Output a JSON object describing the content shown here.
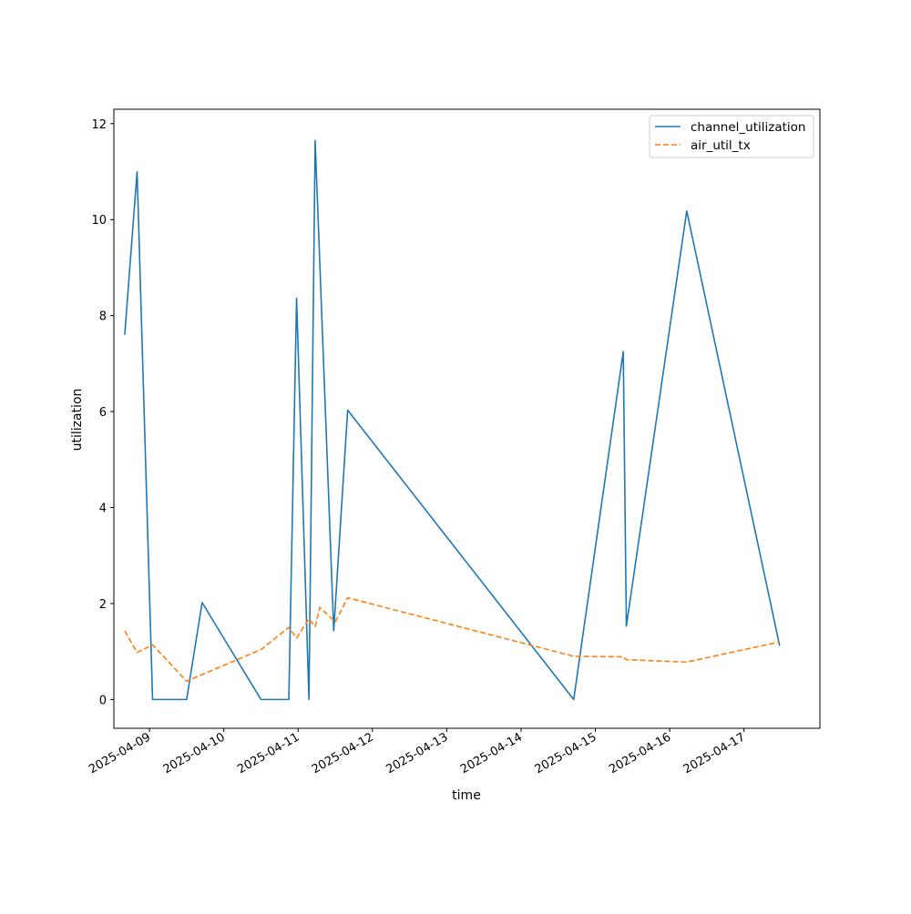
{
  "chart_data": {
    "type": "line",
    "title": "",
    "xlabel": "time",
    "ylabel": "utilization",
    "x_ticks": [
      "2025-04-09",
      "2025-04-10",
      "2025-04-11",
      "2025-04-12",
      "2025-04-13",
      "2025-04-14",
      "2025-04-15",
      "2025-04-16",
      "2025-04-17"
    ],
    "y_ticks": [
      "0",
      "2",
      "4",
      "6",
      "8",
      "10",
      "12"
    ],
    "xlim": [
      "2025-04-08 12:30",
      "2025-04-18 00:30"
    ],
    "ylim": [
      -0.6,
      12.3
    ],
    "grid": false,
    "legend_position": "upper right",
    "series": [
      {
        "name": "channel_utilization",
        "color": "#1f77b4",
        "dash": "solid",
        "points": [
          {
            "x": "2025-04-08 16:00",
            "y": 7.6
          },
          {
            "x": "2025-04-08 20:00",
            "y": 11.0
          },
          {
            "x": "2025-04-09 01:00",
            "y": 0.0
          },
          {
            "x": "2025-04-09 12:00",
            "y": 0.0
          },
          {
            "x": "2025-04-09 17:00",
            "y": 2.02
          },
          {
            "x": "2025-04-10 12:00",
            "y": 0.0
          },
          {
            "x": "2025-04-10 21:00",
            "y": 0.0
          },
          {
            "x": "2025-04-10 23:30",
            "y": 8.36
          },
          {
            "x": "2025-04-11 03:30",
            "y": 0.0
          },
          {
            "x": "2025-04-11 05:30",
            "y": 11.65
          },
          {
            "x": "2025-04-11 11:30",
            "y": 1.43
          },
          {
            "x": "2025-04-11 16:00",
            "y": 6.03
          },
          {
            "x": "2025-04-14 17:00",
            "y": 0.0
          },
          {
            "x": "2025-04-15 09:00",
            "y": 7.25
          },
          {
            "x": "2025-04-15 10:00",
            "y": 1.53
          },
          {
            "x": "2025-04-16 05:30",
            "y": 10.18
          },
          {
            "x": "2025-04-17 11:30",
            "y": 1.12
          }
        ]
      },
      {
        "name": "air_util_tx",
        "color": "#ff7f0e",
        "dash": "dashed",
        "points": [
          {
            "x": "2025-04-08 16:00",
            "y": 1.43
          },
          {
            "x": "2025-04-08 20:00",
            "y": 0.98
          },
          {
            "x": "2025-04-09 01:00",
            "y": 1.14
          },
          {
            "x": "2025-04-09 12:00",
            "y": 0.38
          },
          {
            "x": "2025-04-09 17:00",
            "y": 0.52
          },
          {
            "x": "2025-04-10 12:00",
            "y": 1.04
          },
          {
            "x": "2025-04-10 21:00",
            "y": 1.5
          },
          {
            "x": "2025-04-10 23:30",
            "y": 1.28
          },
          {
            "x": "2025-04-11 03:30",
            "y": 1.68
          },
          {
            "x": "2025-04-11 05:30",
            "y": 1.52
          },
          {
            "x": "2025-04-11 07:00",
            "y": 1.92
          },
          {
            "x": "2025-04-11 12:00",
            "y": 1.62
          },
          {
            "x": "2025-04-11 16:00",
            "y": 2.12
          },
          {
            "x": "2025-04-14 17:00",
            "y": 0.9
          },
          {
            "x": "2025-04-15 09:00",
            "y": 0.89
          },
          {
            "x": "2025-04-15 10:00",
            "y": 0.83
          },
          {
            "x": "2025-04-16 05:30",
            "y": 0.78
          },
          {
            "x": "2025-04-17 11:30",
            "y": 1.2
          }
        ]
      }
    ]
  }
}
